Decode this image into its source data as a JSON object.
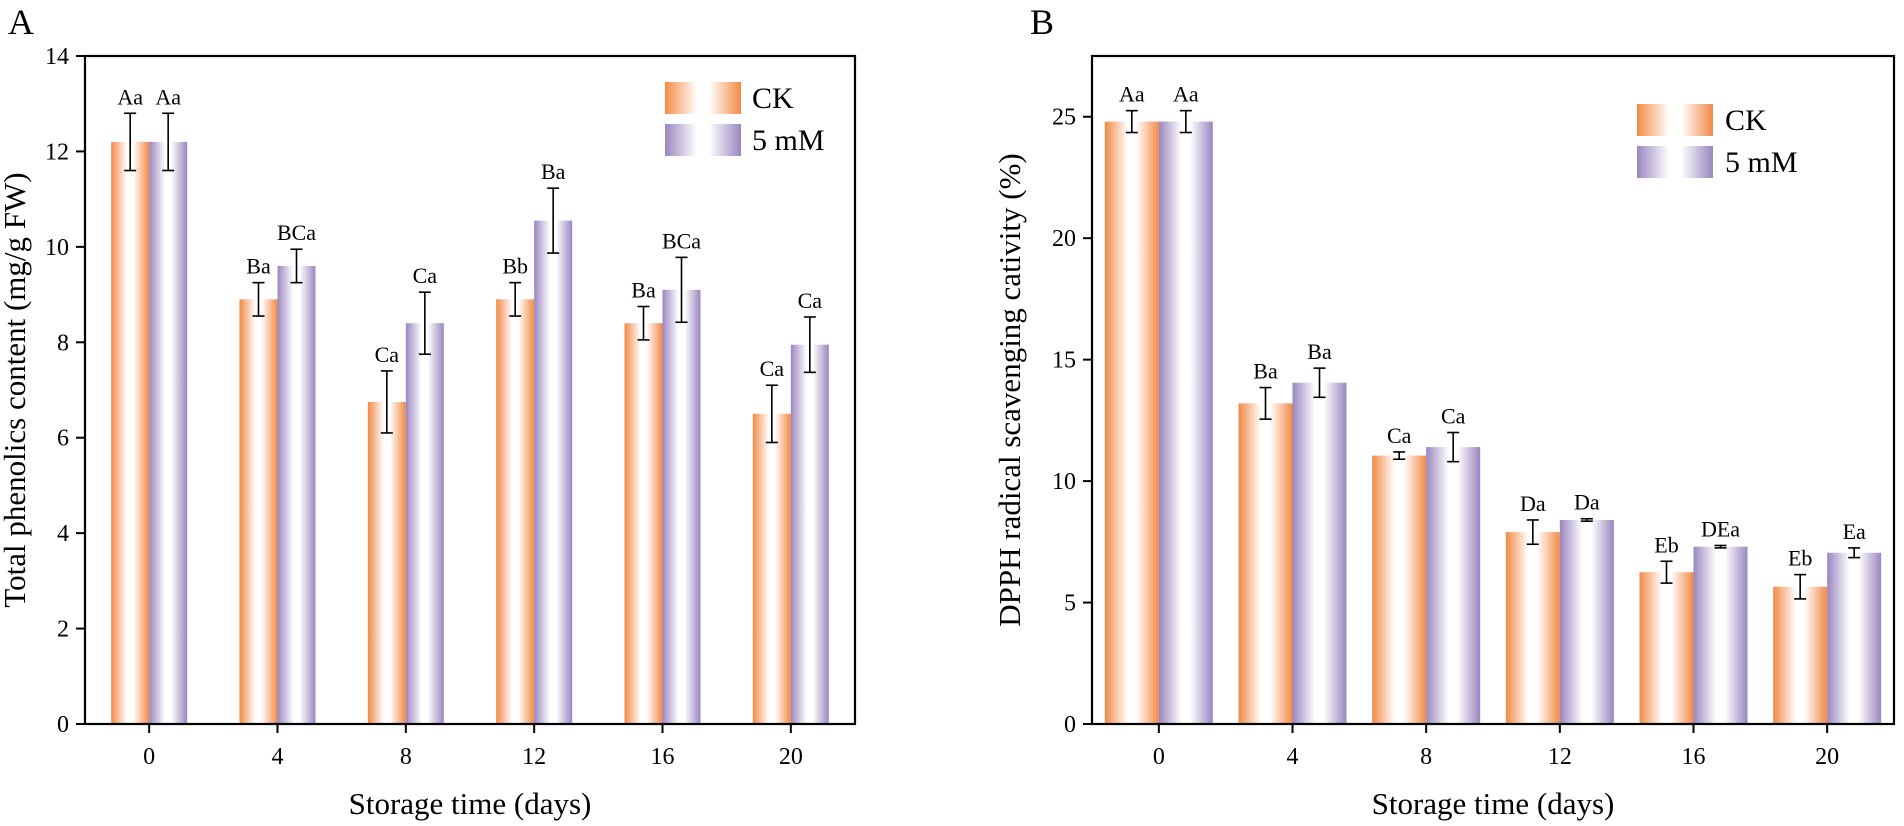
{
  "colors": {
    "ck": "#f28a45",
    "mm": "#9a86c0",
    "axis": "#000000",
    "background": "#ffffff"
  },
  "chart_data": [
    {
      "panel": "A",
      "type": "bar",
      "xlabel": "Storage time (days)",
      "ylabel": "Total phenolics content (mg/g FW)",
      "ylim": [
        0,
        14
      ],
      "yticks": [
        0,
        2,
        4,
        6,
        8,
        10,
        12,
        14
      ],
      "categories": [
        "0",
        "4",
        "8",
        "12",
        "16",
        "20"
      ],
      "legend_position": "top-right",
      "series": [
        {
          "name": "CK",
          "color_key": "ck",
          "values": [
            12.2,
            8.9,
            6.75,
            8.9,
            8.4,
            6.5
          ],
          "errors": [
            0.6,
            0.35,
            0.65,
            0.35,
            0.35,
            0.6
          ],
          "labels": [
            "Aa",
            "Ba",
            "Ca",
            "Bb",
            "Ba",
            "Ca"
          ]
        },
        {
          "name": "5 mM",
          "color_key": "mm",
          "values": [
            12.2,
            9.6,
            8.4,
            10.55,
            9.1,
            7.95
          ],
          "errors": [
            0.6,
            0.35,
            0.65,
            0.68,
            0.68,
            0.58
          ],
          "labels": [
            "Aa",
            "BCa",
            "Ca",
            "Ba",
            "BCa",
            "Ca"
          ]
        }
      ]
    },
    {
      "panel": "B",
      "type": "bar",
      "xlabel": "Storage time (days)",
      "ylabel": "DPPH radical scavenging cativity (%)",
      "ylim": [
        0,
        27.5
      ],
      "yticks": [
        0,
        5,
        10,
        15,
        20,
        25
      ],
      "categories": [
        "0",
        "4",
        "8",
        "12",
        "16",
        "20"
      ],
      "legend_position": "top-right",
      "series": [
        {
          "name": "CK",
          "color_key": "ck",
          "values": [
            24.8,
            13.2,
            11.05,
            7.9,
            6.25,
            5.65
          ],
          "errors": [
            0.45,
            0.65,
            0.15,
            0.5,
            0.45,
            0.5
          ],
          "labels": [
            "Aa",
            "Ba",
            "Ca",
            "Da",
            "Eb",
            "Eb"
          ]
        },
        {
          "name": "5 mM",
          "color_key": "mm",
          "values": [
            24.8,
            14.05,
            11.4,
            8.4,
            7.3,
            7.05
          ],
          "errors": [
            0.45,
            0.6,
            0.6,
            0.05,
            0.05,
            0.2
          ],
          "labels": [
            "Aa",
            "Ba",
            "Ca",
            "Da",
            "DEa",
            "Ea"
          ]
        }
      ]
    }
  ]
}
